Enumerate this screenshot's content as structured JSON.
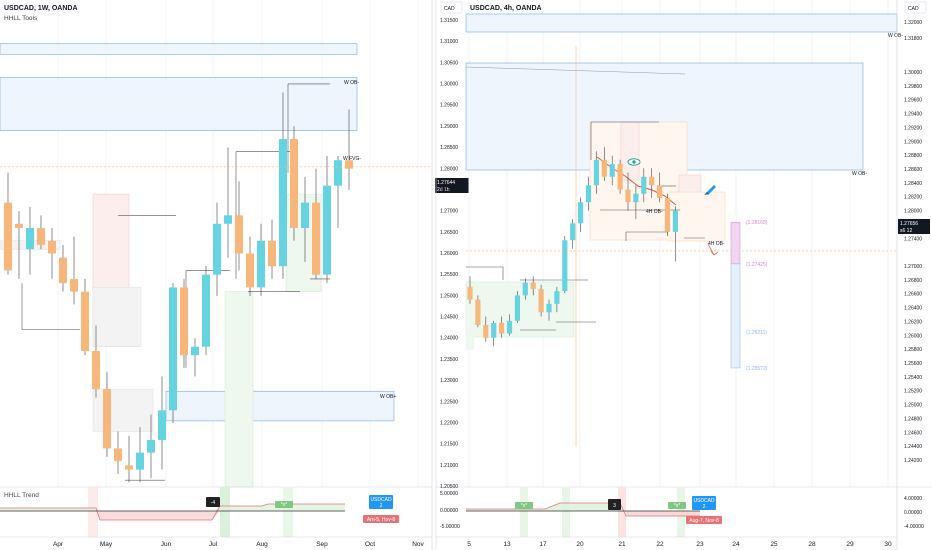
{
  "colors": {
    "bull": "#66d4e0",
    "bear": "#f7b77a",
    "wick": "#444444",
    "grid": "#f0f3fa",
    "priceLine": "#f7b77a",
    "zoneBlue": "#5b9bd5",
    "trendRed": "#e57373",
    "trendGreen": "#7bc47f",
    "axisBg": "#ffffff",
    "textDark": "#131722",
    "tagBlue": "#2196f3",
    "tagRed": "#e57373",
    "tagGreen": "#81c784",
    "tagDark": "#222222",
    "projPink": "#d685d6",
    "projBlue": "#8ab8ef"
  },
  "left_panel": {
    "title": "USDCAD, 1W, OANDA",
    "subtitle": "HHLL Tools",
    "indicator_title": "HHLL Trend",
    "zone_labels": {
      "w_ob_top": "W OB-",
      "w_fvg": "W FVG-",
      "w_ob_bottom": "W OB+"
    },
    "price_tag": {
      "price": "1.27644",
      "countdown": "2d 1h"
    },
    "ind_tags": {
      "count": "-4",
      "top_tag": "USDCAD",
      "top_sub": "2",
      "bottom_tag": "Arn-5, Hov-8"
    },
    "small_labels": {
      "green_tag": "*x*"
    }
  },
  "right_panel": {
    "title": "USDCAD, 4h, OANDA",
    "currency": "CAD",
    "zone_labels": {
      "w_ob_top": "W OB-",
      "w_ob_mid": "W OB-",
      "h_ob": "4H OB-",
      "h_ob_low": "4H OB-"
    },
    "price_tag": {
      "price": "1.27656",
      "countdown": "s6 12"
    },
    "proj_labels": [
      "(1.28168)",
      "(1.27425)",
      "(1.26211)",
      "(1.25572)"
    ],
    "ind_tags": {
      "count": "3",
      "top_tag": "USDCAD",
      "top_sub": "2",
      "bottom_tag": "Aug-7, Nov-8",
      "green_tag": "*x*"
    }
  },
  "chart_data": [
    {
      "type": "candlestick",
      "title": "USDCAD, 1W, OANDA",
      "x_ticks": [
        "Apr",
        "May",
        "Jun",
        "Jul",
        "Aug",
        "Sep",
        "Oct",
        "Nov"
      ],
      "ylim": [
        1.2,
        1.32
      ],
      "candles": [
        {
          "o": 1.268,
          "h": 1.275,
          "l": 1.251,
          "c": 1.252
        },
        {
          "o": 1.263,
          "h": 1.266,
          "l": 1.25,
          "c": 1.262
        },
        {
          "o": 1.257,
          "h": 1.267,
          "l": 1.251,
          "c": 1.262
        },
        {
          "o": 1.262,
          "h": 1.265,
          "l": 1.257,
          "c": 1.258
        },
        {
          "o": 1.259,
          "h": 1.262,
          "l": 1.25,
          "c": 1.256
        },
        {
          "o": 1.255,
          "h": 1.258,
          "l": 1.247,
          "c": 1.249
        },
        {
          "o": 1.25,
          "h": 1.26,
          "l": 1.244,
          "c": 1.247
        },
        {
          "o": 1.247,
          "h": 1.25,
          "l": 1.232,
          "c": 1.233
        },
        {
          "o": 1.233,
          "h": 1.239,
          "l": 1.222,
          "c": 1.224
        },
        {
          "o": 1.224,
          "h": 1.228,
          "l": 1.208,
          "c": 1.21
        },
        {
          "o": 1.21,
          "h": 1.214,
          "l": 1.204,
          "c": 1.207
        },
        {
          "o": 1.206,
          "h": 1.213,
          "l": 1.202,
          "c": 1.205
        },
        {
          "o": 1.205,
          "h": 1.215,
          "l": 1.202,
          "c": 1.209
        },
        {
          "o": 1.209,
          "h": 1.218,
          "l": 1.203,
          "c": 1.212
        },
        {
          "o": 1.212,
          "h": 1.227,
          "l": 1.205,
          "c": 1.219
        },
        {
          "o": 1.219,
          "h": 1.249,
          "l": 1.216,
          "c": 1.248
        },
        {
          "o": 1.248,
          "h": 1.25,
          "l": 1.229,
          "c": 1.232
        },
        {
          "o": 1.232,
          "h": 1.236,
          "l": 1.227,
          "c": 1.234
        },
        {
          "o": 1.234,
          "h": 1.253,
          "l": 1.232,
          "c": 1.251
        },
        {
          "o": 1.251,
          "h": 1.268,
          "l": 1.246,
          "c": 1.263
        },
        {
          "o": 1.263,
          "h": 1.281,
          "l": 1.255,
          "c": 1.265
        },
        {
          "o": 1.265,
          "h": 1.273,
          "l": 1.252,
          "c": 1.256
        },
        {
          "o": 1.256,
          "h": 1.26,
          "l": 1.246,
          "c": 1.248
        },
        {
          "o": 1.248,
          "h": 1.263,
          "l": 1.246,
          "c": 1.259
        },
        {
          "o": 1.259,
          "h": 1.264,
          "l": 1.25,
          "c": 1.253
        },
        {
          "o": 1.253,
          "h": 1.294,
          "l": 1.25,
          "c": 1.283
        },
        {
          "o": 1.283,
          "h": 1.286,
          "l": 1.259,
          "c": 1.262
        },
        {
          "o": 1.262,
          "h": 1.274,
          "l": 1.254,
          "c": 1.268
        },
        {
          "o": 1.268,
          "h": 1.276,
          "l": 1.25,
          "c": 1.251
        },
        {
          "o": 1.251,
          "h": 1.279,
          "l": 1.249,
          "c": 1.272
        },
        {
          "o": 1.272,
          "h": 1.279,
          "l": 1.262,
          "c": 1.278
        },
        {
          "o": 1.278,
          "h": 1.29,
          "l": 1.271,
          "c": 1.276
        }
      ],
      "last_price": 1.27644,
      "zones": [
        {
          "label": "W OB-",
          "top": 1.3055,
          "bottom": 1.303
        },
        {
          "label": "W FVG-",
          "top": 1.2975,
          "bottom": 1.285
        },
        {
          "label": "W OB+",
          "top": 1.2235,
          "bottom": 1.2165
        }
      ],
      "indicator": {
        "name": "HHLL Trend",
        "ylim": [
          -5,
          5
        ]
      }
    },
    {
      "type": "candlestick",
      "title": "USDCAD, 4h, OANDA",
      "x_ticks": [
        "5",
        "13",
        "17",
        "20",
        "21",
        "22",
        "23",
        "24",
        "25",
        "28",
        "29",
        "30"
      ],
      "y_ticks": [
        "1.31500",
        "1.31000",
        "1.30500",
        "1.30000",
        "1.29500",
        "1.29000",
        "1.28500",
        "1.28000",
        "1.27500",
        "1.27000",
        "1.26500",
        "1.26000",
        "1.25500",
        "1.25000",
        "1.24500",
        "1.24000",
        "1.23500",
        "1.23000",
        "1.22500",
        "1.22000",
        "1.21500",
        "1.21000",
        "1.20500"
      ],
      "y_ticks_right": [
        "1.32000",
        "1.31800",
        "1.30000",
        "1.29800",
        "1.29600",
        "1.29400",
        "1.29200",
        "1.29000",
        "1.28800",
        "1.28600",
        "1.28400",
        "1.28200",
        "1.28000",
        "1.27800",
        "1.27400",
        "1.27200",
        "1.27000",
        "1.26800",
        "1.26600",
        "1.26400",
        "1.26200",
        "1.26000",
        "1.25800",
        "1.25600",
        "1.25400",
        "1.25200",
        "1.25000",
        "1.24800",
        "1.24600",
        "1.24400",
        "1.24200"
      ],
      "ind_ticks": [
        "4.00000",
        "0.00000",
        "-4.00000"
      ],
      "ind_ticks_left": [
        "5.00000",
        "0.00000",
        "-5.00000"
      ],
      "ylim": [
        1.2045,
        1.3215
      ],
      "candles": [
        {
          "o": 1.252,
          "h": 1.2545,
          "l": 1.248,
          "c": 1.249
        },
        {
          "o": 1.249,
          "h": 1.25,
          "l": 1.2425,
          "c": 1.243
        },
        {
          "o": 1.243,
          "h": 1.245,
          "l": 1.239,
          "c": 1.24
        },
        {
          "o": 1.24,
          "h": 1.244,
          "l": 1.238,
          "c": 1.2435
        },
        {
          "o": 1.2435,
          "h": 1.245,
          "l": 1.24,
          "c": 1.241
        },
        {
          "o": 1.241,
          "h": 1.2455,
          "l": 1.2405,
          "c": 1.244
        },
        {
          "o": 1.244,
          "h": 1.251,
          "l": 1.2435,
          "c": 1.25
        },
        {
          "o": 1.25,
          "h": 1.254,
          "l": 1.249,
          "c": 1.253
        },
        {
          "o": 1.253,
          "h": 1.2545,
          "l": 1.25,
          "c": 1.2515
        },
        {
          "o": 1.2515,
          "h": 1.2525,
          "l": 1.245,
          "c": 1.246
        },
        {
          "o": 1.246,
          "h": 1.249,
          "l": 1.244,
          "c": 1.248
        },
        {
          "o": 1.248,
          "h": 1.252,
          "l": 1.246,
          "c": 1.251
        },
        {
          "o": 1.251,
          "h": 1.264,
          "l": 1.2505,
          "c": 1.263
        },
        {
          "o": 1.263,
          "h": 1.268,
          "l": 1.261,
          "c": 1.267
        },
        {
          "o": 1.267,
          "h": 1.273,
          "l": 1.265,
          "c": 1.272
        },
        {
          "o": 1.272,
          "h": 1.278,
          "l": 1.27,
          "c": 1.276
        },
        {
          "o": 1.276,
          "h": 1.284,
          "l": 1.274,
          "c": 1.282
        },
        {
          "o": 1.282,
          "h": 1.285,
          "l": 1.277,
          "c": 1.278
        },
        {
          "o": 1.278,
          "h": 1.283,
          "l": 1.276,
          "c": 1.281
        },
        {
          "o": 1.281,
          "h": 1.282,
          "l": 1.274,
          "c": 1.275
        },
        {
          "o": 1.275,
          "h": 1.279,
          "l": 1.27,
          "c": 1.272
        },
        {
          "o": 1.272,
          "h": 1.276,
          "l": 1.268,
          "c": 1.274
        },
        {
          "o": 1.274,
          "h": 1.28,
          "l": 1.272,
          "c": 1.278
        },
        {
          "o": 1.278,
          "h": 1.28,
          "l": 1.273,
          "c": 1.276
        },
        {
          "o": 1.276,
          "h": 1.279,
          "l": 1.272,
          "c": 1.273
        },
        {
          "o": 1.273,
          "h": 1.274,
          "l": 1.264,
          "c": 1.265
        },
        {
          "o": 1.265,
          "h": 1.271,
          "l": 1.258,
          "c": 1.27
        }
      ],
      "last_price": 1.27656,
      "zones": [
        {
          "label": "W OB-",
          "top": 1.3195,
          "bottom": 1.315
        },
        {
          "label": "W OB-",
          "top": 1.303,
          "bottom": 1.278
        }
      ],
      "projection": [
        1.28168,
        1.27425,
        1.26211,
        1.25572
      ],
      "indicator": {
        "ylim": [
          -5,
          5
        ]
      }
    }
  ]
}
